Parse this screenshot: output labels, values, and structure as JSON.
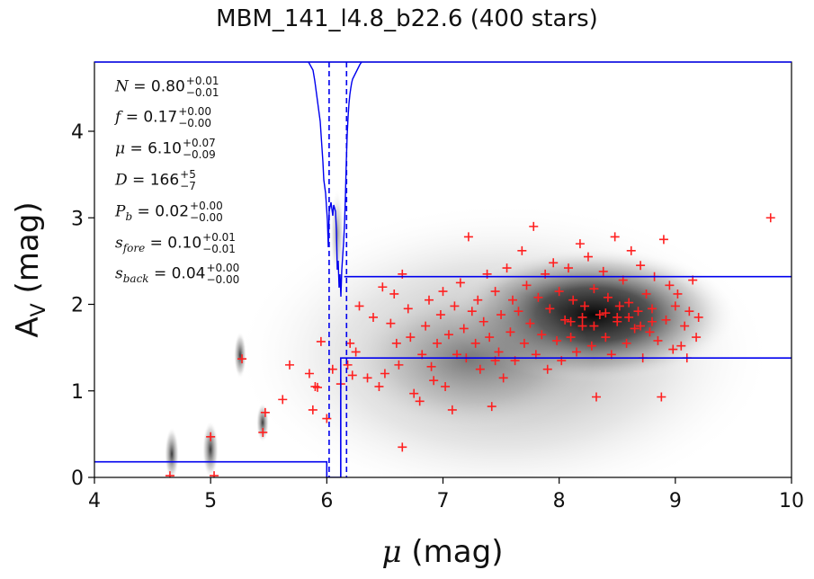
{
  "title": "MBM_141_l4.8_b22.6 (400 stars)",
  "colors": {
    "points": "#ff2020",
    "model": "#0000ee",
    "axes": "#000000"
  },
  "params": [
    {
      "sym": "N",
      "sub": "",
      "val": "0.80",
      "plus": "+0.01",
      "minus": "−0.01"
    },
    {
      "sym": "f",
      "sub": "",
      "val": "0.17",
      "plus": "+0.00",
      "minus": "−0.00"
    },
    {
      "sym": "μ",
      "sub": "",
      "val": "6.10",
      "plus": "+0.07",
      "minus": "−0.09"
    },
    {
      "sym": "D",
      "sub": "",
      "val": "166",
      "plus": "+5",
      "minus": "−7"
    },
    {
      "sym": "P",
      "sub": "b",
      "val": "0.02",
      "plus": "+0.00",
      "minus": "−0.00"
    },
    {
      "sym": "s",
      "sub": "fore",
      "val": "0.10",
      "plus": "+0.01",
      "minus": "−0.01"
    },
    {
      "sym": "s",
      "sub": "back",
      "val": "0.04",
      "plus": "+0.00",
      "minus": "−0.00"
    }
  ],
  "chart_data": {
    "type": "scatter",
    "title": "MBM_141_l4.8_b22.6 (400 stars)",
    "xlabel": "μ (mag)",
    "ylabel": "A_V (mag)",
    "xlim": [
      4,
      10
    ],
    "ylim": [
      0,
      4.8
    ],
    "xticks": [
      "4",
      "5",
      "6",
      "7",
      "8",
      "9",
      "10"
    ],
    "yticks": [
      "0",
      "1",
      "2",
      "3",
      "4"
    ],
    "points": [
      [
        4.65,
        0.02
      ],
      [
        5.0,
        0.47
      ],
      [
        5.03,
        0.02
      ],
      [
        5.27,
        1.37
      ],
      [
        5.45,
        0.52
      ],
      [
        5.47,
        0.75
      ],
      [
        5.62,
        0.9
      ],
      [
        5.68,
        1.3
      ],
      [
        5.85,
        1.2
      ],
      [
        5.88,
        0.78
      ],
      [
        5.9,
        1.05
      ],
      [
        5.92,
        1.04
      ],
      [
        5.95,
        1.57
      ],
      [
        6.0,
        0.68
      ],
      [
        6.05,
        1.25
      ],
      [
        6.12,
        1.08
      ],
      [
        6.18,
        1.3
      ],
      [
        6.2,
        1.55
      ],
      [
        6.25,
        1.45
      ],
      [
        6.22,
        1.18
      ],
      [
        6.28,
        1.98
      ],
      [
        6.35,
        1.15
      ],
      [
        6.4,
        1.85
      ],
      [
        6.45,
        1.05
      ],
      [
        6.5,
        1.2
      ],
      [
        6.48,
        2.2
      ],
      [
        6.55,
        1.78
      ],
      [
        6.58,
        2.12
      ],
      [
        6.6,
        1.55
      ],
      [
        6.62,
        1.3
      ],
      [
        6.65,
        2.35
      ],
      [
        6.7,
        1.95
      ],
      [
        6.72,
        1.62
      ],
      [
        6.75,
        0.97
      ],
      [
        6.8,
        0.88
      ],
      [
        6.82,
        1.42
      ],
      [
        6.85,
        1.75
      ],
      [
        6.88,
        2.05
      ],
      [
        6.9,
        1.28
      ],
      [
        6.92,
        1.12
      ],
      [
        6.95,
        1.55
      ],
      [
        6.98,
        1.88
      ],
      [
        7.0,
        2.15
      ],
      [
        7.02,
        1.05
      ],
      [
        7.05,
        1.65
      ],
      [
        7.08,
        0.78
      ],
      [
        7.1,
        1.98
      ],
      [
        7.12,
        1.42
      ],
      [
        7.15,
        2.25
      ],
      [
        7.18,
        1.72
      ],
      [
        7.2,
        1.38
      ],
      [
        7.22,
        2.78
      ],
      [
        7.25,
        1.92
      ],
      [
        7.28,
        1.55
      ],
      [
        7.3,
        2.05
      ],
      [
        7.32,
        1.25
      ],
      [
        7.35,
        1.8
      ],
      [
        7.38,
        2.35
      ],
      [
        7.4,
        1.62
      ],
      [
        7.42,
        0.82
      ],
      [
        7.45,
        2.15
      ],
      [
        7.48,
        1.45
      ],
      [
        7.5,
        1.88
      ],
      [
        7.52,
        1.15
      ],
      [
        7.55,
        2.42
      ],
      [
        7.58,
        1.68
      ],
      [
        7.6,
        2.05
      ],
      [
        7.62,
        1.35
      ],
      [
        7.65,
        1.92
      ],
      [
        7.68,
        2.62
      ],
      [
        7.7,
        1.55
      ],
      [
        7.72,
        2.22
      ],
      [
        7.75,
        1.78
      ],
      [
        7.78,
        2.9
      ],
      [
        7.8,
        1.42
      ],
      [
        7.82,
        2.08
      ],
      [
        7.85,
        1.65
      ],
      [
        7.88,
        2.35
      ],
      [
        7.9,
        1.25
      ],
      [
        7.92,
        1.95
      ],
      [
        7.95,
        2.48
      ],
      [
        7.98,
        1.58
      ],
      [
        8.0,
        2.15
      ],
      [
        8.02,
        1.35
      ],
      [
        8.05,
        1.82
      ],
      [
        8.08,
        2.42
      ],
      [
        8.1,
        1.62
      ],
      [
        8.12,
        2.05
      ],
      [
        8.15,
        1.45
      ],
      [
        8.18,
        2.7
      ],
      [
        8.2,
        1.75
      ],
      [
        8.22,
        1.98
      ],
      [
        8.25,
        2.55
      ],
      [
        8.28,
        1.52
      ],
      [
        8.3,
        2.18
      ],
      [
        8.32,
        0.93
      ],
      [
        8.35,
        1.88
      ],
      [
        8.38,
        2.38
      ],
      [
        8.4,
        1.62
      ],
      [
        8.42,
        2.08
      ],
      [
        8.45,
        1.42
      ],
      [
        8.48,
        2.78
      ],
      [
        8.5,
        1.85
      ],
      [
        8.52,
        1.98
      ],
      [
        8.55,
        2.28
      ],
      [
        8.58,
        1.55
      ],
      [
        8.6,
        2.02
      ],
      [
        8.62,
        2.62
      ],
      [
        8.65,
        1.72
      ],
      [
        8.68,
        1.92
      ],
      [
        8.7,
        2.45
      ],
      [
        8.72,
        1.38
      ],
      [
        8.75,
        2.12
      ],
      [
        8.78,
        1.68
      ],
      [
        8.8,
        1.95
      ],
      [
        8.82,
        2.32
      ],
      [
        8.85,
        1.58
      ],
      [
        8.88,
        0.93
      ],
      [
        8.9,
        2.75
      ],
      [
        8.92,
        1.82
      ],
      [
        8.95,
        2.22
      ],
      [
        8.98,
        1.48
      ],
      [
        9.0,
        1.98
      ],
      [
        9.02,
        2.12
      ],
      [
        9.05,
        1.52
      ],
      [
        9.08,
        1.75
      ],
      [
        9.1,
        1.38
      ],
      [
        9.12,
        1.92
      ],
      [
        9.15,
        2.28
      ],
      [
        9.18,
        1.62
      ],
      [
        9.2,
        1.85
      ],
      [
        6.65,
        0.35
      ],
      [
        7.45,
        1.35
      ],
      [
        9.82,
        3.0
      ],
      [
        8.1,
        1.8
      ],
      [
        8.2,
        1.85
      ],
      [
        8.3,
        1.75
      ],
      [
        8.4,
        1.9
      ],
      [
        8.5,
        1.8
      ],
      [
        8.6,
        1.85
      ],
      [
        8.7,
        1.75
      ],
      [
        8.8,
        1.8
      ]
    ],
    "model_lines": [
      {
        "name": "threshold-line",
        "x": [
          4.0,
          6.0,
          6.0,
          6.12,
          6.12,
          10.0
        ],
        "y": [
          0.18,
          0.18,
          0.0,
          0.0,
          1.38,
          1.38
        ]
      },
      {
        "name": "upper-line",
        "x": [
          6.15,
          10.0
        ],
        "y": [
          2.32,
          2.32
        ]
      }
    ],
    "vlines_dashed": [
      6.02,
      6.17
    ]
  }
}
